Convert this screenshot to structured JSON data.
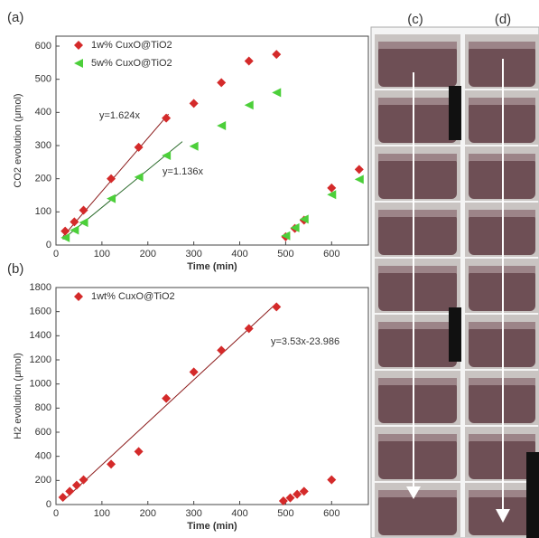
{
  "chart_data": [
    {
      "type": "scatter",
      "panel_label": "(a)",
      "x_label": "Time (min)",
      "y_label": "CO2 evolution (μmol)",
      "xlim": [
        0,
        680
      ],
      "xticks": [
        0,
        100,
        200,
        300,
        400,
        500,
        600
      ],
      "ylim": [
        0,
        630
      ],
      "yticks": [
        0,
        100,
        200,
        300,
        400,
        500,
        600
      ],
      "legend": "upper left",
      "series": [
        {
          "name": "1w% CuxO@TiO2",
          "color": "#d42a2a",
          "marker": "diamond",
          "x": [
            20,
            40,
            60,
            120,
            180,
            240,
            300,
            360,
            420,
            480,
            500,
            520,
            540,
            600,
            660
          ],
          "values": [
            42,
            70,
            105,
            200,
            295,
            383,
            427,
            490,
            555,
            575,
            25,
            50,
            75,
            172,
            228
          ]
        },
        {
          "name": "5w% CuxO@TiO2",
          "color": "#4ccf3a",
          "marker": "triangle-left",
          "x": [
            20,
            40,
            60,
            120,
            180,
            240,
            300,
            360,
            420,
            480,
            500,
            520,
            540,
            600,
            660
          ],
          "values": [
            22,
            45,
            68,
            140,
            205,
            270,
            298,
            360,
            422,
            460,
            28,
            52,
            78,
            152,
            198
          ]
        }
      ],
      "fit_lines": [
        {
          "color": "#8b1a1a",
          "x": [
            15,
            245
          ],
          "y": [
            25,
            395
          ]
        },
        {
          "color": "#2a6a2a",
          "x": [
            15,
            275
          ],
          "y": [
            17,
            312
          ]
        }
      ],
      "annotations": [
        "y=1.624x",
        "y=1.136x"
      ]
    },
    {
      "type": "scatter",
      "panel_label": "(b)",
      "x_label": "Time (min)",
      "y_label": "H2 evolution (μmol)",
      "xlim": [
        0,
        680
      ],
      "xticks": [
        0,
        100,
        200,
        300,
        400,
        500,
        600
      ],
      "ylim": [
        0,
        1800
      ],
      "yticks": [
        0,
        200,
        400,
        600,
        800,
        1000,
        1200,
        1400,
        1600,
        1800
      ],
      "legend": "upper left",
      "series": [
        {
          "name": "1wt% CuxO@TiO2",
          "color": "#d42a2a",
          "marker": "diamond",
          "x": [
            15,
            30,
            45,
            60,
            120,
            180,
            240,
            300,
            360,
            420,
            480,
            495,
            510,
            525,
            540,
            600
          ],
          "values": [
            60,
            110,
            160,
            205,
            335,
            440,
            880,
            1100,
            1280,
            1460,
            1640,
            30,
            55,
            85,
            110,
            205
          ]
        }
      ],
      "fit_lines": [
        {
          "color": "#8b1a1a",
          "x": [
            15,
            480
          ],
          "y": [
            29,
            1670
          ]
        }
      ],
      "annotations": [
        "y=3.53x-23.986"
      ]
    }
  ],
  "photos": {
    "labels": [
      "(c)",
      "(d)"
    ]
  }
}
